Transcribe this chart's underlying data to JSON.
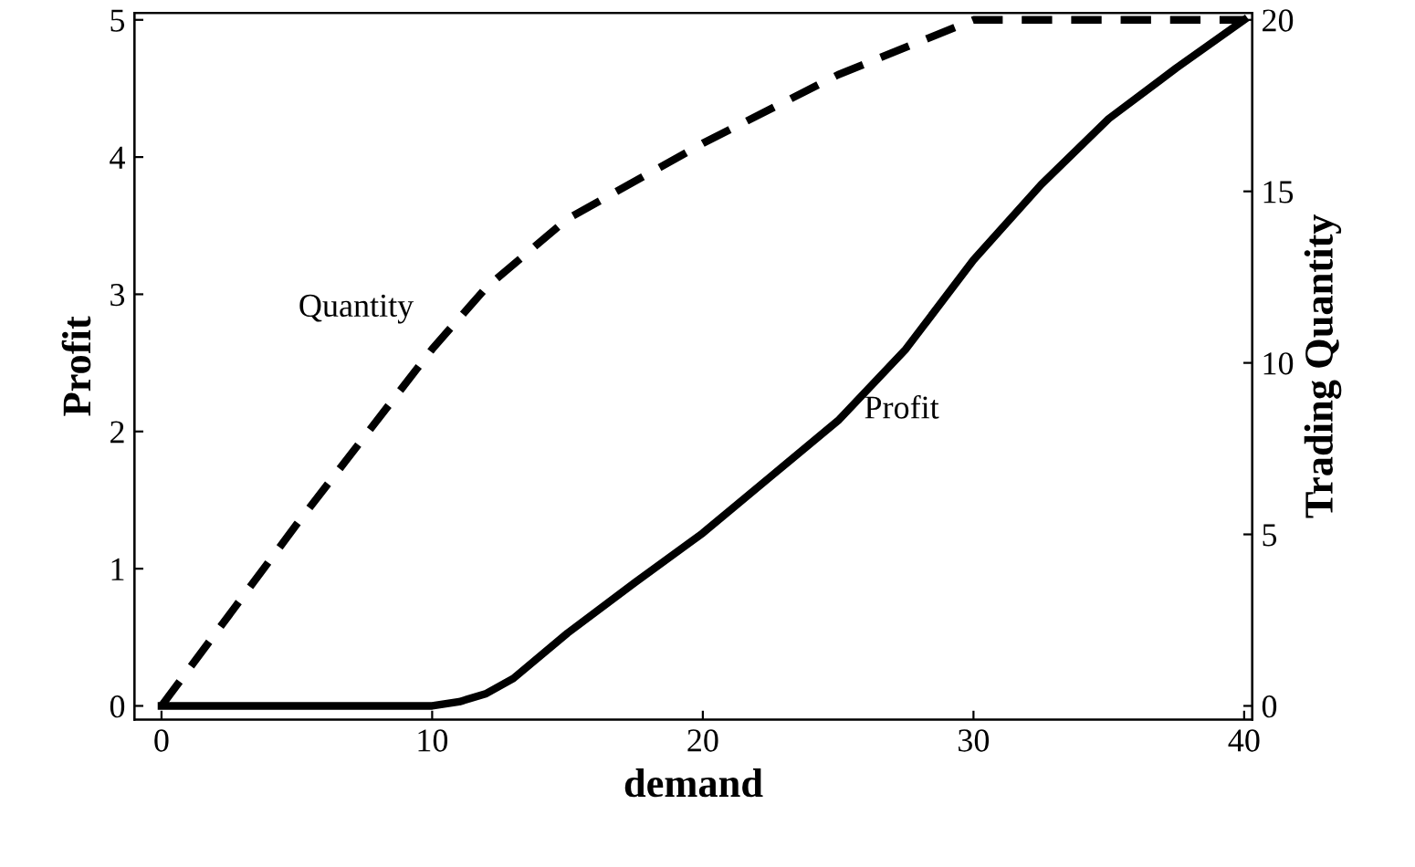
{
  "chart_data": {
    "type": "line",
    "xlabel": "demand",
    "ylabel": "Profit",
    "y2label": "Trading Quantity",
    "xlim": [
      -1,
      40.3
    ],
    "xticks": [
      0,
      10,
      20,
      30,
      40
    ],
    "ylim": [
      -0.1,
      5.05
    ],
    "yticks": [
      0,
      1,
      2,
      3,
      4,
      5
    ],
    "y2lim": [
      -0.4,
      20.2
    ],
    "y2ticks": [
      0,
      5,
      10,
      15,
      20
    ],
    "grid": false,
    "legend": false,
    "series": [
      {
        "name": "Quantity",
        "color": "#000000",
        "line_style": "dashed",
        "axis": "y2",
        "x": [
          0,
          5,
          10,
          12,
          15,
          20,
          25,
          30,
          35,
          40
        ],
        "values": [
          0,
          5.3,
          10.4,
          12.2,
          14.2,
          16.4,
          18.4,
          20,
          20,
          20
        ]
      },
      {
        "name": "Profit",
        "color": "#000000",
        "line_style": "solid",
        "x": [
          0,
          5,
          10,
          11,
          12,
          13,
          15,
          17.5,
          20,
          22.5,
          25,
          27.5,
          30,
          32.5,
          35,
          37.5,
          40
        ],
        "values": [
          0,
          0,
          0,
          0.03,
          0.09,
          0.2,
          0.53,
          0.9,
          1.26,
          1.67,
          2.08,
          2.6,
          3.25,
          3.8,
          4.28,
          4.65,
          5
        ]
      }
    ]
  }
}
